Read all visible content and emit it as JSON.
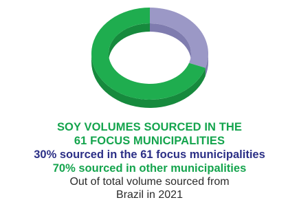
{
  "chart_data": {
    "type": "pie",
    "title_lines": [
      "SOY VOLUMES SOURCED IN THE",
      "61 FOCUS MUNICIPALITIES"
    ],
    "slices": [
      {
        "label": "30% sourced in the 61 focus municipalities",
        "value": 30,
        "color": "#9b98c6"
      },
      {
        "label": "70% sourced in other municipalities",
        "value": 70,
        "color": "#1fad4f"
      }
    ],
    "note_lines": [
      "Out of total volume sourced from",
      "Brazil in 2021"
    ]
  },
  "colors": {
    "green": "#1fad4f",
    "green_side": "#168a3d",
    "lavender": "#9b98c6",
    "lavender_side": "#7f7caf"
  }
}
